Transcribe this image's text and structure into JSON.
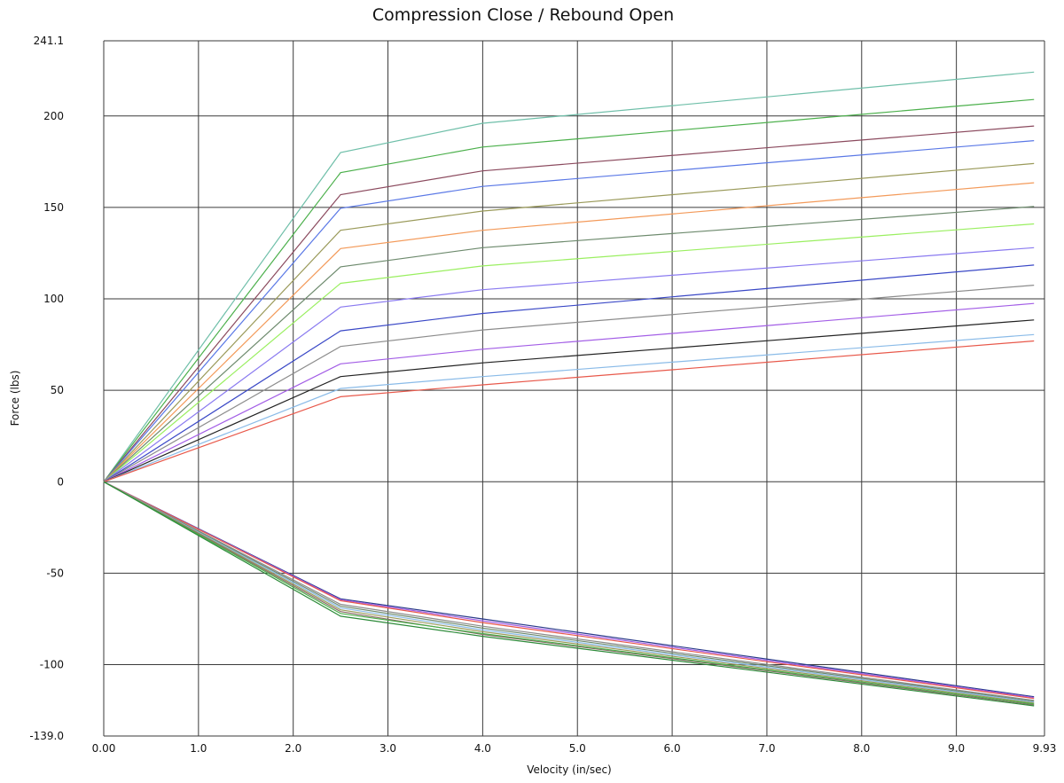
{
  "chart_data": {
    "type": "line",
    "title": "Compression Close / Rebound Open",
    "xlabel": "Velocity (in/sec)",
    "ylabel": "Force (lbs)",
    "xlim": [
      0,
      9.93
    ],
    "ylim": [
      -139.0,
      241.1
    ],
    "x_ticks": [
      {
        "value": 0,
        "label": "0.00"
      },
      {
        "value": 1,
        "label": "1.0"
      },
      {
        "value": 2,
        "label": "2.0"
      },
      {
        "value": 3,
        "label": "3.0"
      },
      {
        "value": 4,
        "label": "4.0"
      },
      {
        "value": 5,
        "label": "5.0"
      },
      {
        "value": 6,
        "label": "6.0"
      },
      {
        "value": 7,
        "label": "7.0"
      },
      {
        "value": 8,
        "label": "8.0"
      },
      {
        "value": 9,
        "label": "9.0"
      },
      {
        "value": 9.93,
        "label": "9.93"
      }
    ],
    "y_ticks": [
      {
        "value": 241.1,
        "label": "241.1"
      },
      {
        "value": 200,
        "label": "200"
      },
      {
        "value": 150,
        "label": "150"
      },
      {
        "value": 100,
        "label": "100"
      },
      {
        "value": 50,
        "label": "50"
      },
      {
        "value": 0,
        "label": "0"
      },
      {
        "value": -50,
        "label": "-50"
      },
      {
        "value": -100,
        "label": "-100"
      },
      {
        "value": -139.0,
        "label": "-139.0"
      }
    ],
    "grid": true,
    "legend": "none",
    "x": [
      0,
      2.5,
      4.0,
      9.82
    ],
    "series": [
      {
        "color": "#6fbfa9",
        "values": [
          0,
          180.0,
          196.0,
          224.0
        ]
      },
      {
        "color": "#4cb04c",
        "values": [
          0,
          169.0,
          183.0,
          209.0
        ]
      },
      {
        "color": "#8b4a5e",
        "values": [
          0,
          157.0,
          170.0,
          194.5
        ]
      },
      {
        "color": "#5a78e6",
        "values": [
          0,
          149.5,
          161.5,
          186.5
        ]
      },
      {
        "color": "#9a9a5a",
        "values": [
          0,
          137.5,
          148.0,
          174.0
        ]
      },
      {
        "color": "#f39a5a",
        "values": [
          0,
          127.5,
          137.5,
          163.5
        ]
      },
      {
        "color": "#6d8a6d",
        "values": [
          0,
          117.5,
          128.0,
          150.5
        ]
      },
      {
        "color": "#9aef60",
        "values": [
          0,
          108.5,
          118.0,
          141.0
        ]
      },
      {
        "color": "#8a7af0",
        "values": [
          0,
          95.5,
          105.0,
          128.0
        ]
      },
      {
        "color": "#3a48c6",
        "values": [
          0,
          82.5,
          92.0,
          118.5
        ]
      },
      {
        "color": "#8c8c8c",
        "values": [
          0,
          74.0,
          83.0,
          107.5
        ]
      },
      {
        "color": "#a35ee6",
        "values": [
          0,
          64.5,
          72.5,
          97.5
        ]
      },
      {
        "color": "#222222",
        "values": [
          0,
          57.5,
          65.0,
          88.5
        ]
      },
      {
        "color": "#8abbe8",
        "values": [
          0,
          51.0,
          57.5,
          80.5
        ]
      },
      {
        "color": "#e8584a",
        "values": [
          0,
          46.5,
          53.0,
          77.0
        ]
      },
      {
        "color": "#2a3a8a",
        "values": [
          0,
          -64.0,
          -75.0,
          -117.5
        ]
      },
      {
        "color": "#a35ee6",
        "values": [
          0,
          -64.5,
          -76.0,
          -118.0
        ]
      },
      {
        "color": "#e8584a",
        "values": [
          0,
          -65.0,
          -77.0,
          -118.5
        ]
      },
      {
        "color": "#8c8c8c",
        "values": [
          0,
          -67.0,
          -79.0,
          -119.5
        ]
      },
      {
        "color": "#6d8a6d",
        "values": [
          0,
          -68.0,
          -80.0,
          -120.0
        ]
      },
      {
        "color": "#8abbe8",
        "values": [
          0,
          -69.0,
          -81.0,
          -120.5
        ]
      },
      {
        "color": "#9a9a5a",
        "values": [
          0,
          -70.0,
          -82.0,
          -121.0
        ]
      },
      {
        "color": "#8b6a6a",
        "values": [
          0,
          -71.0,
          -83.5,
          -122.0
        ]
      },
      {
        "color": "#4cb04c",
        "values": [
          0,
          -72.0,
          -83.0,
          -121.5
        ]
      },
      {
        "color": "#2e8b3a",
        "values": [
          0,
          -73.5,
          -84.5,
          -122.5
        ]
      }
    ]
  }
}
